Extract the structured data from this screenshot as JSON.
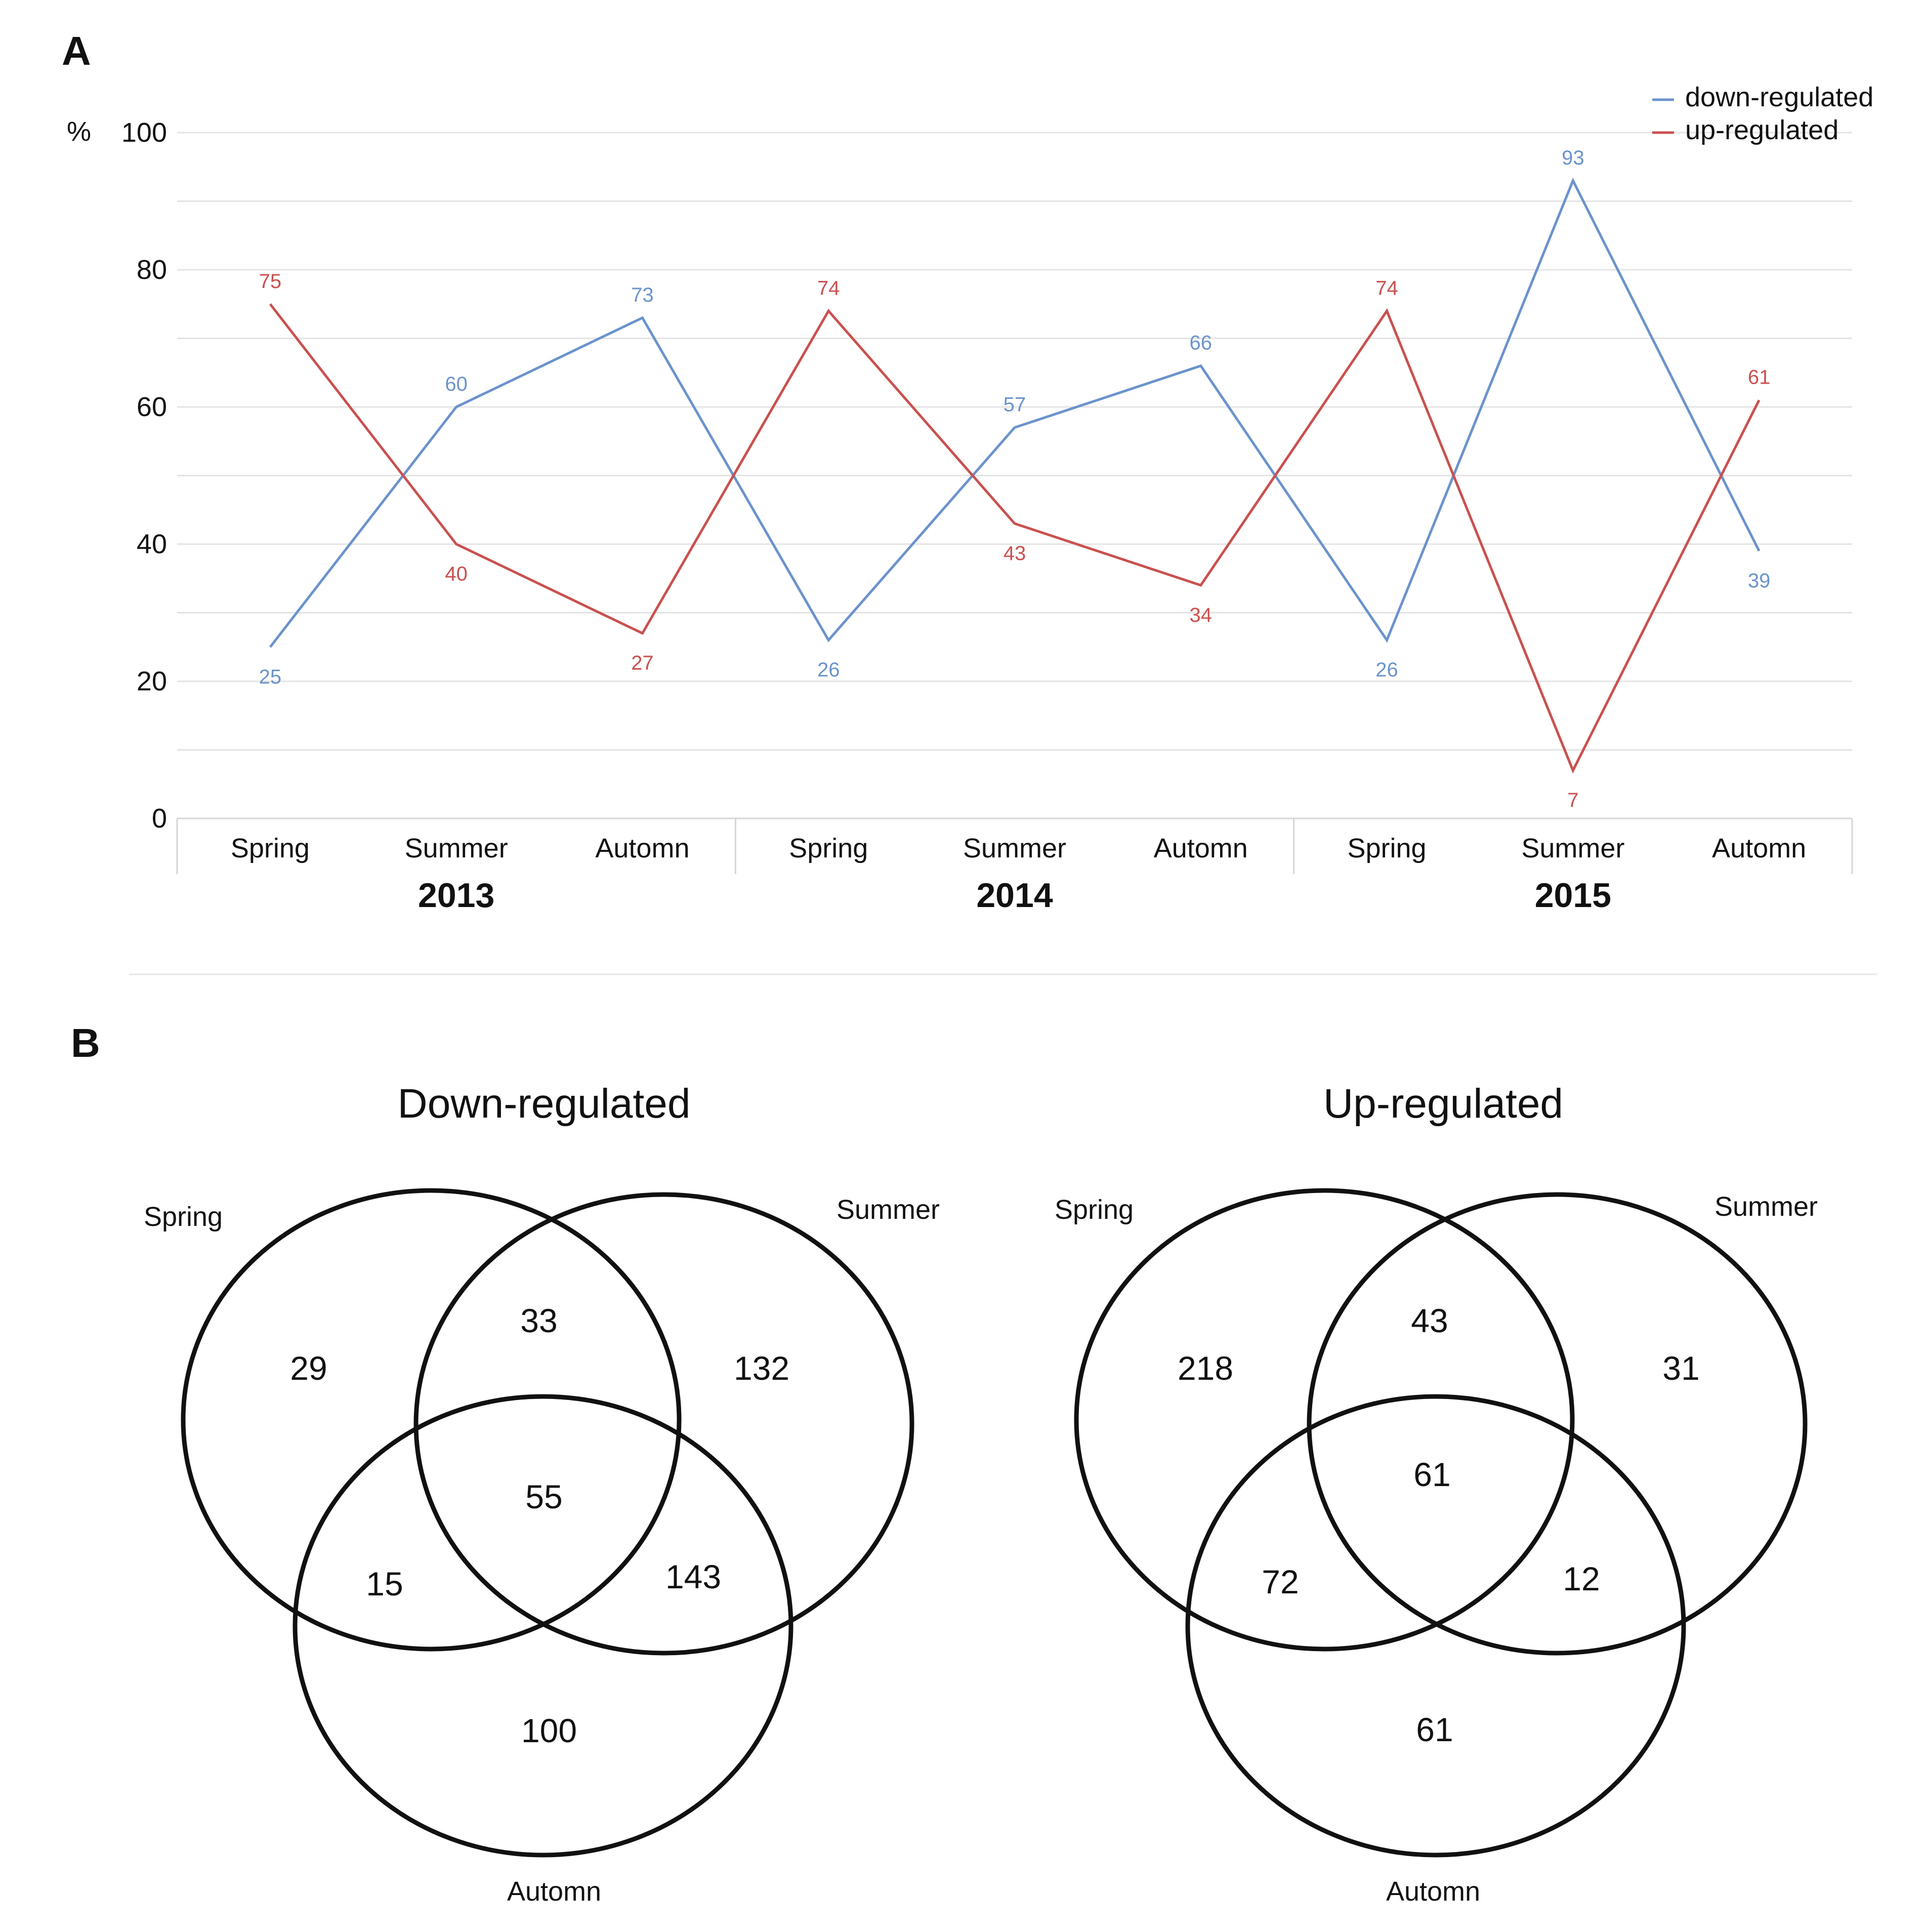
{
  "panels": {
    "a": "A",
    "b": "B"
  },
  "colors": {
    "down": "#6b93cc",
    "up": "#c9514f"
  },
  "chart_data": {
    "type": "line",
    "unit_label": "%",
    "ylim": [
      0,
      100
    ],
    "yticks": [
      "0",
      "20",
      "40",
      "60",
      "80",
      "100"
    ],
    "categories": [
      "Spring",
      "Summer",
      "Automn",
      "Spring",
      "Summer",
      "Automn",
      "Spring",
      "Summer",
      "Automn"
    ],
    "years": [
      "2013",
      "2014",
      "2015"
    ],
    "legend_position": "top-right",
    "series": [
      {
        "name": "down-regulated",
        "values": [
          25,
          60,
          73,
          26,
          57,
          66,
          26,
          93,
          39
        ]
      },
      {
        "name": "up-regulated",
        "values": [
          75,
          40,
          27,
          74,
          43,
          34,
          74,
          7,
          61
        ]
      }
    ]
  },
  "venn": [
    {
      "title": "Down-regulated",
      "sets": [
        "Spring",
        "Summer",
        "Automn"
      ],
      "counts": {
        "spring_only": "29",
        "summer_only": "132",
        "spring_summer": "33",
        "all": "55",
        "spring_automn": "15",
        "summer_automn": "143",
        "automn_only": "100"
      }
    },
    {
      "title": "Up-regulated",
      "sets": [
        "Spring",
        "Summer",
        "Automn"
      ],
      "counts": {
        "spring_only": "218",
        "summer_only": "31",
        "spring_summer": "43",
        "all": "61",
        "spring_automn": "72",
        "summer_automn": "12",
        "automn_only": "61"
      }
    }
  ]
}
